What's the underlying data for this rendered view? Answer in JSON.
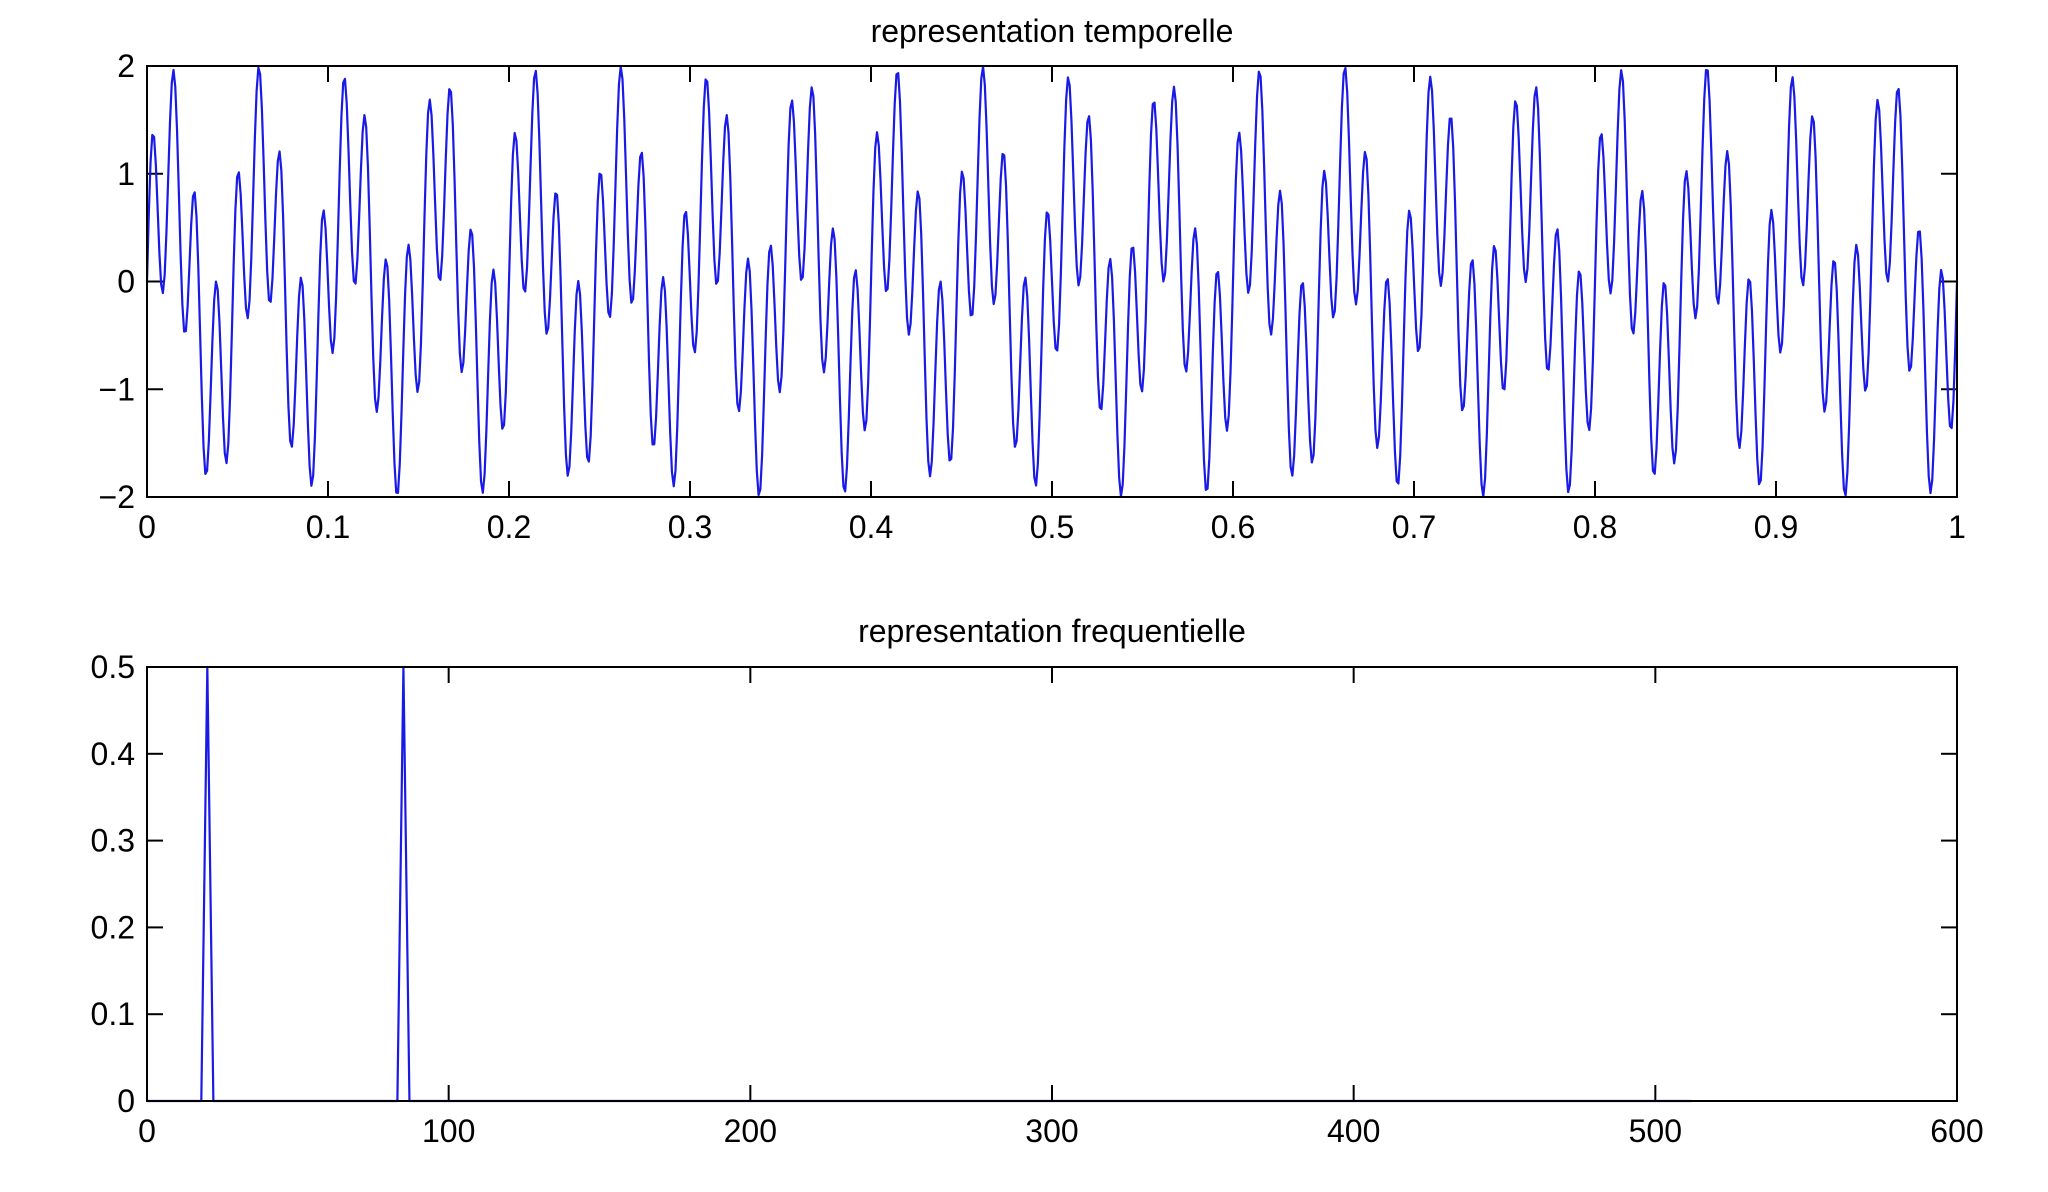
{
  "chart_data": [
    {
      "type": "line",
      "title": "representation temporelle",
      "xlabel": "",
      "ylabel": "",
      "xlim": [
        0,
        1
      ],
      "ylim": [
        -2,
        2
      ],
      "xticks": [
        0,
        0.1,
        0.2,
        0.3,
        0.4,
        0.5,
        0.6,
        0.7,
        0.8,
        0.9,
        1
      ],
      "xtick_labels": [
        "0",
        "0.1",
        "0.2",
        "0.3",
        "0.4",
        "0.5",
        "0.6",
        "0.7",
        "0.8",
        "0.9",
        "1"
      ],
      "yticks": [
        -2,
        -1,
        0,
        1,
        2
      ],
      "ytick_labels": [
        "−2",
        "−1",
        "0",
        "1",
        "2"
      ],
      "grid": false,
      "legend": "none",
      "color": "#1a1ae6",
      "series": [
        {
          "function": "sin(2*pi*20*t) + sin(2*pi*85*t)",
          "components": [
            {
              "amplitude": 1,
              "frequency_hz": 20
            },
            {
              "amplitude": 1,
              "frequency_hz": 85
            }
          ],
          "t_start": 0,
          "t_end": 1,
          "samples": 1024
        }
      ]
    },
    {
      "type": "line",
      "title": "representation frequentielle",
      "xlabel": "",
      "ylabel": "",
      "xlim": [
        0,
        600
      ],
      "ylim": [
        0,
        0.5
      ],
      "xticks": [
        0,
        100,
        200,
        300,
        400,
        500,
        600
      ],
      "xtick_labels": [
        "0",
        "100",
        "200",
        "300",
        "400",
        "500",
        "600"
      ],
      "yticks": [
        0,
        0.1,
        0.2,
        0.3,
        0.4,
        0.5
      ],
      "ytick_labels": [
        "0",
        "0.1",
        "0.2",
        "0.3",
        "0.4",
        "0.5"
      ],
      "grid": false,
      "legend": "none",
      "color": "#1a1ae6",
      "series": [
        {
          "x_range": [
            0,
            512
          ],
          "baseline": 0,
          "peaks": [
            {
              "x": 20,
              "y": 0.5
            },
            {
              "x": 85,
              "y": 0.5
            }
          ]
        }
      ]
    }
  ]
}
